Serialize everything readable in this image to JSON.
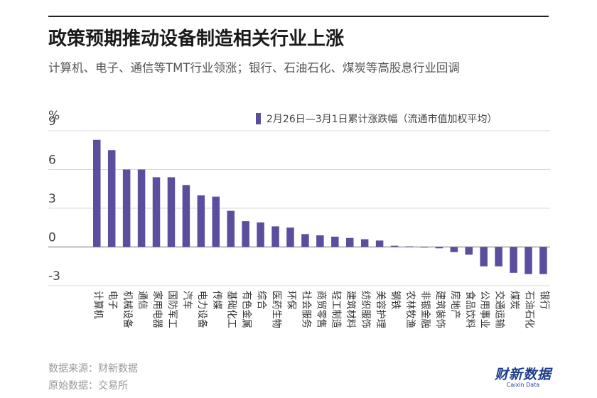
{
  "header": {
    "title": "政策预期推动设备制造相关行业上涨",
    "subtitle": "计算机、电子、通信等TMT行业领涨；银行、石油石化、煤炭等高股息行业回调"
  },
  "footer": {
    "source": "数据来源：财新数据",
    "origin": "原始数据：交易所",
    "logo_cn": "财新数据",
    "logo_en": "Caixin Data"
  },
  "chart_data": {
    "type": "bar",
    "unit": "%",
    "legend": "2月26日—3月1日累计涨跌幅（流通市值加权平均）",
    "ylim": [
      -3,
      9
    ],
    "yticks": [
      "9",
      "6",
      "3",
      "0",
      "-3"
    ],
    "color": "#5b4e9e",
    "categories": [
      "计算机",
      "电子",
      "机械设备",
      "通信",
      "家用电器",
      "国防军工",
      "汽车",
      "电力设备",
      "传媒",
      "基础化工",
      "有色金属",
      "综合",
      "医药生物",
      "环保",
      "社会服务",
      "商贸零售",
      "轻工制造",
      "建筑材料",
      "纺织服饰",
      "美容护理",
      "钢铁",
      "农林牧渔",
      "非银金融",
      "建筑装饰",
      "房地产",
      "食品饮料",
      "公用事业",
      "交通运输",
      "煤炭",
      "石油石化",
      "银行"
    ],
    "values": [
      8.3,
      7.5,
      6.0,
      6.0,
      5.4,
      5.4,
      4.8,
      4.0,
      3.9,
      2.8,
      2.0,
      1.9,
      1.6,
      1.5,
      1.0,
      0.9,
      0.8,
      0.7,
      0.6,
      0.5,
      0.1,
      0.05,
      0.0,
      -0.1,
      -0.4,
      -0.6,
      -1.5,
      -1.5,
      -2.0,
      -2.1,
      -2.1
    ]
  }
}
